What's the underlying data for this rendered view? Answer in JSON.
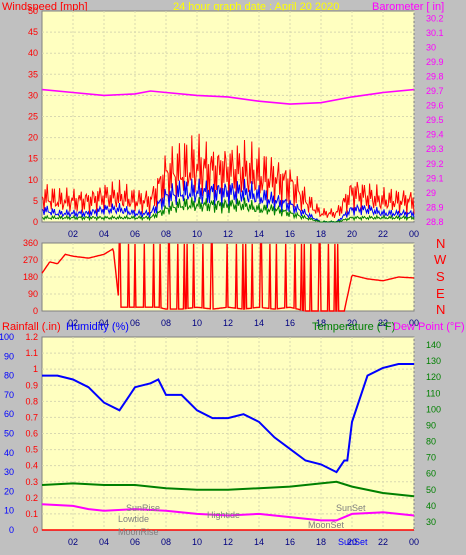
{
  "header": {
    "left_label": "Windspeed [mph]",
    "center_label": "24 hour graph date : April 20 2020",
    "right_label": "Barometer [ in]"
  },
  "wind_dir_labels": [
    "N",
    "W",
    "S",
    "E",
    "N"
  ],
  "bottom_header": {
    "rainfall": "Rainfall (.in)",
    "humidity": "Humidity (%)",
    "temperature": "Temperature (°F)",
    "dew_point": "Dew Point (°F)"
  },
  "annotations": {
    "sunrise": "SunRise",
    "lowtide": "Lowtide",
    "moonrise": "MoonRise",
    "hightide": "Hightide",
    "sunset": "SunSet",
    "moonset": "MoonSet",
    "sunset_axis": "SunSet"
  },
  "colors": {
    "plot_bg": "#ffffc0",
    "frame": "#c0c0c0",
    "wind_gust": "#ff0000",
    "wind_avg": "#0000ff",
    "wind_low": "#008000",
    "barometer": "#ff00ff",
    "direction": "#ff0000",
    "humidity": "#0000ff",
    "temperature": "#008000",
    "dew_point": "#ff00ff",
    "rain": "#ff0000"
  },
  "chart_data": [
    {
      "type": "line",
      "panel": "wind_barometer",
      "x_ticks": [
        "02",
        "04",
        "06",
        "08",
        "10",
        "12",
        "14",
        "16",
        "18",
        "20",
        "22",
        "00"
      ],
      "y_left": {
        "label": "Windspeed [mph]",
        "ticks": [
          "0",
          "5",
          "10",
          "15",
          "20",
          "25",
          "30",
          "35",
          "40",
          "45",
          "50"
        ],
        "ylim": [
          0,
          50
        ]
      },
      "y_right": {
        "label": "Barometer [ in]",
        "ticks": [
          "28.8",
          "28.9",
          "29",
          "29.1",
          "29.2",
          "29.3",
          "29.4",
          "29.5",
          "29.6",
          "29.7",
          "29.8",
          "29.9",
          "30",
          "30.1",
          "30.2"
        ],
        "ylim": [
          28.8,
          30.25
        ]
      },
      "series": [
        {
          "name": "gust",
          "x": [
            0,
            1,
            2,
            3,
            4,
            5,
            6,
            7,
            8,
            9,
            10,
            11,
            12,
            13,
            14,
            15,
            16,
            17,
            18,
            19,
            20,
            21,
            22,
            23,
            24
          ],
          "values": [
            6,
            5,
            5,
            5,
            6,
            6,
            5,
            5,
            11,
            12,
            13,
            12,
            12,
            12,
            11,
            10,
            9,
            5,
            2,
            2,
            7,
            6,
            5,
            5,
            5
          ]
        },
        {
          "name": "avg",
          "x": [
            0,
            1,
            2,
            3,
            4,
            5,
            6,
            7,
            8,
            9,
            10,
            11,
            12,
            13,
            14,
            15,
            16,
            17,
            18,
            19,
            20,
            21,
            22,
            23,
            24
          ],
          "values": [
            3,
            2,
            2,
            2,
            3,
            3,
            2,
            2,
            6,
            7,
            7,
            7,
            7,
            7,
            6,
            5,
            4,
            2,
            0,
            0,
            3,
            3,
            2,
            2,
            2
          ]
        },
        {
          "name": "low",
          "x": [
            0,
            1,
            2,
            3,
            4,
            5,
            6,
            7,
            8,
            9,
            10,
            11,
            12,
            13,
            14,
            15,
            16,
            17,
            18,
            19,
            20,
            21,
            22,
            23,
            24
          ],
          "values": [
            1,
            1,
            1,
            1,
            1,
            1,
            1,
            1,
            3,
            4,
            4,
            4,
            4,
            4,
            3,
            3,
            2,
            1,
            0,
            0,
            1,
            1,
            1,
            1,
            1
          ]
        },
        {
          "name": "barometer",
          "axis": "right",
          "x": [
            0,
            2,
            4,
            6,
            7,
            8,
            10,
            12,
            14,
            16,
            18,
            20,
            22,
            24
          ],
          "values": [
            29.71,
            29.69,
            29.67,
            29.68,
            29.7,
            29.69,
            29.67,
            29.66,
            29.63,
            29.61,
            29.62,
            29.66,
            29.69,
            29.71
          ]
        }
      ]
    },
    {
      "type": "line",
      "panel": "wind_direction",
      "x_ticks": [
        "02",
        "04",
        "06",
        "08",
        "10",
        "12",
        "14",
        "16",
        "18",
        "20",
        "22",
        "00"
      ],
      "y_ticks": [
        "0",
        "90",
        "180",
        "270",
        "360"
      ],
      "ylim": [
        0,
        360
      ],
      "series": [
        {
          "name": "direction",
          "x": [
            0,
            0.5,
            1,
            1.5,
            2,
            3,
            4,
            4.6,
            5,
            6,
            7,
            7.5,
            8,
            9,
            10,
            11,
            12,
            13,
            14,
            15,
            16,
            17,
            18,
            19,
            19.5,
            20,
            21,
            22,
            23,
            24
          ],
          "values": [
            200,
            260,
            250,
            300,
            290,
            280,
            300,
            330,
            20,
            20,
            20,
            20,
            10,
            10,
            20,
            10,
            20,
            10,
            20,
            10,
            20,
            0,
            0,
            0,
            0,
            190,
            170,
            160,
            180,
            175
          ]
        }
      ]
    },
    {
      "type": "line",
      "panel": "rain_humidity_temp",
      "x_ticks": [
        "02",
        "04",
        "06",
        "08",
        "10",
        "12",
        "14",
        "16",
        "18",
        "20",
        "22",
        "00"
      ],
      "y_rain": {
        "label": "Rainfall (.in)",
        "ticks": [
          "0",
          "0.1",
          "0.2",
          "0.3",
          "0.4",
          "0.5",
          "0.6",
          "0.7",
          "0.8",
          "0.9",
          "1",
          "1.1",
          "1.2"
        ],
        "ylim": [
          0,
          1.2
        ]
      },
      "y_humidity": {
        "label": "Humidity (%)",
        "ticks": [
          "0",
          "10",
          "20",
          "30",
          "40",
          "50",
          "60",
          "70",
          "80",
          "90",
          "100"
        ],
        "ylim": [
          0,
          100
        ]
      },
      "y_temp": {
        "label": "Temperature (°F)",
        "ticks": [
          "30",
          "40",
          "50",
          "60",
          "70",
          "80",
          "90",
          "100",
          "110",
          "120",
          "130",
          "140"
        ],
        "ylim": [
          25,
          145
        ]
      },
      "series": [
        {
          "name": "humidity",
          "axis": "humidity",
          "x": [
            0,
            1,
            2,
            3,
            3.5,
            4,
            5,
            5.5,
            6,
            7,
            7.5,
            8,
            9,
            10,
            11,
            12,
            13,
            14,
            15,
            16,
            17,
            18,
            19,
            19.5,
            19.7,
            20,
            21,
            22,
            23,
            24
          ],
          "values": [
            80,
            80,
            78,
            74,
            70,
            66,
            62,
            68,
            74,
            76,
            78,
            70,
            70,
            62,
            58,
            58,
            60,
            56,
            48,
            42,
            36,
            34,
            30,
            36,
            36,
            56,
            80,
            84,
            86,
            86
          ]
        },
        {
          "name": "temperature",
          "axis": "temp",
          "x": [
            0,
            2,
            4,
            6,
            8,
            10,
            12,
            14,
            16,
            18,
            19,
            20,
            22,
            24
          ],
          "values": [
            53,
            54,
            53,
            53,
            51,
            50,
            50,
            51,
            52,
            54,
            55,
            52,
            48,
            46
          ]
        },
        {
          "name": "dew_point",
          "axis": "temp",
          "x": [
            0,
            2,
            3,
            4,
            6,
            8,
            10,
            12,
            14,
            16,
            17,
            18,
            19,
            20,
            22,
            24
          ],
          "values": [
            41,
            40,
            38,
            37,
            38,
            37,
            35,
            34,
            35,
            33,
            32,
            31,
            31,
            35,
            36,
            34
          ]
        },
        {
          "name": "rain",
          "axis": "rain",
          "x": [
            0,
            24
          ],
          "values": [
            0,
            0
          ]
        }
      ]
    }
  ]
}
